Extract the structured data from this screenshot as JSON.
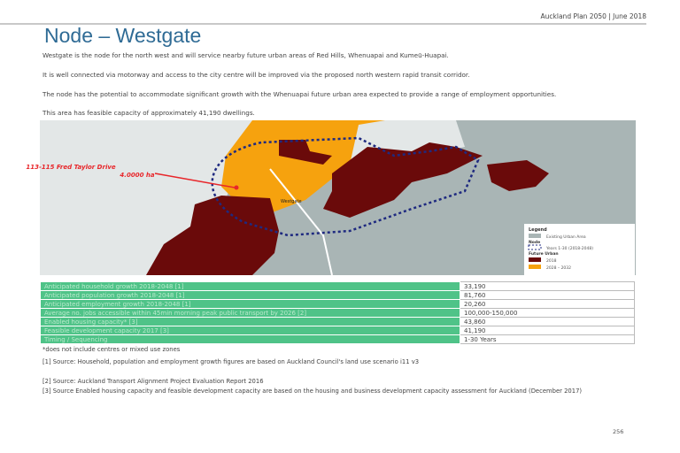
{
  "header": "Auckland Plan 2050 | June 2018",
  "title": "Node – Westgate",
  "paragraphs": [
    "Westgate is the node for the north west and will service nearby future urban areas of Red Hills, Whenuapai and Kumeū-Huapai.",
    "It is well connected via motorway and access to the city centre will be improved via the proposed north western rapid transit corridor.",
    "The node has the potential to accommodate significant growth with the Whenuapai future urban area expected to provide a range of employment opportunities.",
    "This area has feasible capacity of approximately 41,190 dwellings."
  ],
  "map": {
    "annotation_line1": "113-115 Fred Taylor Drive",
    "annotation_line2": "4.0000 ha",
    "place_label": "Westgate",
    "legend": {
      "title": "Legend",
      "existing": "Existing Urban Area",
      "node_heading": "Node",
      "node": "Years 1-30 (2018-2048)",
      "future_heading": "Future Urban",
      "fu1": "2018",
      "fu2": "2028 – 2032"
    },
    "colors": {
      "existing": "#a9b5b5",
      "future_2018": "#6a0a0a",
      "future_2028": "#f6a20e",
      "node": "#1f2a80",
      "annotation": "#e8262a"
    }
  },
  "table": [
    {
      "k": "Anticipated household growth 2018-2048 [1]",
      "v": "33,190"
    },
    {
      "k": "Anticipated population growth 2018-2048 [1]",
      "v": "81,760"
    },
    {
      "k": "Anticipated employment growth 2018-2048 [1]",
      "v": "20,260"
    },
    {
      "k": "Average no. jobs accessible within 45min morning peak public transport by 2026 [2]",
      "v": "100,000-150,000"
    },
    {
      "k": "Enabled housing capacity* [3]",
      "v": "43,860"
    },
    {
      "k": "Feasible development capacity 2017 [3]",
      "v": "41,190"
    },
    {
      "k": "Timing / Sequencing",
      "v": "1-30 Years"
    }
  ],
  "notes": [
    "*does not include centres or mixed use zones",
    "[1] Source: Household, population and employment growth figures are based on Auckland Council's land use scenario i11 v3",
    "[2] Source: Auckland Transport Alignment Project Evaluation Report 2016",
    "[3] Source Enabled housing capacity and feasible development capacity are based on the housing and business development capacity assessment for Auckland (December 2017)"
  ],
  "page_number": "256"
}
